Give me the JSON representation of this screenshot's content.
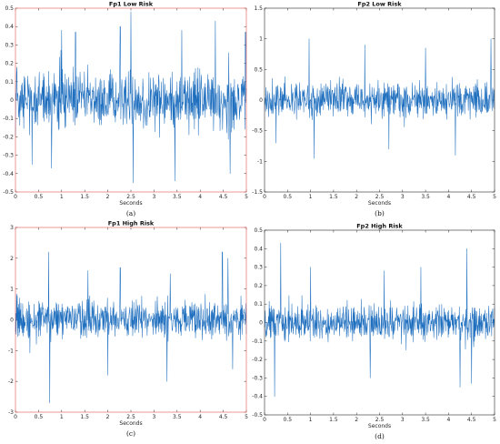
{
  "chart_data": [
    {
      "type": "line",
      "panel": "(a)",
      "title": "Fp1 Low Risk",
      "xlabel": "Seconds",
      "ylabel": "",
      "xlim": [
        0,
        5
      ],
      "ylim": [
        -0.5,
        0.5
      ],
      "xticks": [
        "0",
        "0.5",
        "1",
        "1.5",
        "2",
        "2.5",
        "3",
        "3.5",
        "4",
        "4.5",
        "5"
      ],
      "yticks": [
        "-0.5",
        "-0.4",
        "-0.3",
        "-0.2",
        "-0.1",
        "0",
        "0.1",
        "0.2",
        "0.3",
        "0.4",
        "0.5"
      ],
      "series_color": "#1f6fbf",
      "amplitude": 0.2,
      "peaks": [
        [
          0.36,
          -0.35
        ],
        [
          0.78,
          -0.37
        ],
        [
          1.0,
          0.38
        ],
        [
          1.3,
          0.37
        ],
        [
          2.27,
          0.4
        ],
        [
          2.5,
          0.48
        ],
        [
          2.55,
          -0.45
        ],
        [
          3.45,
          -0.44
        ],
        [
          3.6,
          0.38
        ],
        [
          4.33,
          0.43
        ],
        [
          4.65,
          -0.4
        ],
        [
          4.98,
          0.37
        ]
      ]
    },
    {
      "type": "line",
      "panel": "(b)",
      "title": "Fp2 Low Risk",
      "xlabel": "Seconds",
      "ylabel": "",
      "xlim": [
        0,
        5
      ],
      "ylim": [
        -1.5,
        1.5
      ],
      "xticks": [
        "0",
        "0.5",
        "1",
        "1.5",
        "2",
        "2.5",
        "3",
        "3.5",
        "4",
        "4.5",
        "5"
      ],
      "yticks": [
        "-1.5",
        "-1",
        "-0.5",
        "0",
        "0.5",
        "1",
        "1.5"
      ],
      "series_color": "#1f6fbf",
      "amplitude": 0.35,
      "peaks": [
        [
          0.25,
          -0.7
        ],
        [
          0.97,
          1.0
        ],
        [
          1.08,
          -0.95
        ],
        [
          2.18,
          0.9
        ],
        [
          2.7,
          -0.8
        ],
        [
          3.5,
          0.85
        ],
        [
          4.15,
          -0.9
        ],
        [
          4.92,
          1.0
        ]
      ]
    },
    {
      "type": "line",
      "panel": "(c)",
      "title": "Fp1 High Risk",
      "xlabel": "Seconds",
      "ylabel": "",
      "xlim": [
        0,
        5
      ],
      "ylim": [
        -3,
        3
      ],
      "xticks": [
        "0",
        "0.5",
        "1",
        "1.5",
        "2",
        "2.5",
        "3",
        "3.5",
        "4",
        "4.5",
        "5"
      ],
      "yticks": [
        "-3",
        "-2",
        "-1",
        "0",
        "1",
        "2",
        "3"
      ],
      "series_color": "#1f6fbf",
      "amplitude": 0.75,
      "peaks": [
        [
          0.72,
          2.2
        ],
        [
          0.74,
          -2.7
        ],
        [
          1.57,
          1.6
        ],
        [
          2.0,
          -1.8
        ],
        [
          2.27,
          1.7
        ],
        [
          3.28,
          -2.0
        ],
        [
          3.35,
          1.5
        ],
        [
          4.48,
          2.2
        ],
        [
          4.6,
          2.0
        ],
        [
          4.7,
          -1.6
        ]
      ]
    },
    {
      "type": "line",
      "panel": "(d)",
      "title": "Fp2 High Risk",
      "xlabel": "Seconds",
      "ylabel": "",
      "xlim": [
        0,
        5
      ],
      "ylim": [
        -0.5,
        0.5
      ],
      "xticks": [
        "0",
        "0.5",
        "1",
        "1.5",
        "2",
        "2.5",
        "3",
        "3.5",
        "4",
        "4.5",
        "5"
      ],
      "yticks": [
        "-0.5",
        "-0.4",
        "-0.3",
        "-0.2",
        "-0.1",
        "0",
        "0.1",
        "0.2",
        "0.3",
        "0.4",
        "0.5"
      ],
      "series_color": "#1f6fbf",
      "amplitude": 0.12,
      "peaks": [
        [
          0.35,
          0.43
        ],
        [
          0.22,
          -0.4
        ],
        [
          1.0,
          0.3
        ],
        [
          2.6,
          0.28
        ],
        [
          2.3,
          -0.3
        ],
        [
          3.4,
          0.3
        ],
        [
          4.4,
          0.4
        ],
        [
          4.25,
          -0.35
        ],
        [
          4.5,
          -0.33
        ]
      ]
    }
  ]
}
